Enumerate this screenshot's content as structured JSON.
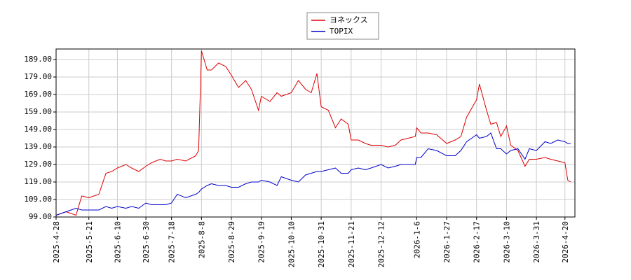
{
  "chart_data": {
    "type": "line",
    "x": [
      "2025-04-28",
      "2025-05-05",
      "2025-05-12",
      "2025-05-16",
      "2025-05-21",
      "2025-05-28",
      "2025-06-02",
      "2025-06-06",
      "2025-06-10",
      "2025-06-16",
      "2025-06-20",
      "2025-06-25",
      "2025-06-30",
      "2025-07-04",
      "2025-07-10",
      "2025-07-14",
      "2025-07-18",
      "2025-07-22",
      "2025-07-28",
      "2025-08-04",
      "2025-08-06",
      "2025-08-08",
      "2025-08-12",
      "2025-08-15",
      "2025-08-20",
      "2025-08-25",
      "2025-08-29",
      "2025-09-03",
      "2025-09-08",
      "2025-09-12",
      "2025-09-17",
      "2025-09-19",
      "2025-09-25",
      "2025-09-30",
      "2025-10-03",
      "2025-10-10",
      "2025-10-15",
      "2025-10-20",
      "2025-10-24",
      "2025-10-28",
      "2025-10-31",
      "2025-11-05",
      "2025-11-10",
      "2025-11-14",
      "2025-11-19",
      "2025-11-21",
      "2025-11-26",
      "2025-12-01",
      "2025-12-05",
      "2025-12-12",
      "2025-12-17",
      "2025-12-22",
      "2025-12-26",
      "2026-01-05",
      "2026-01-06",
      "2026-01-09",
      "2026-01-14",
      "2026-01-20",
      "2026-01-27",
      "2026-02-02",
      "2026-02-06",
      "2026-02-10",
      "2026-02-17",
      "2026-02-19",
      "2026-02-24",
      "2026-02-27",
      "2026-03-03",
      "2026-03-06",
      "2026-03-10",
      "2026-03-13",
      "2026-03-18",
      "2026-03-23",
      "2026-03-26",
      "2026-03-31",
      "2026-04-06",
      "2026-04-10",
      "2026-04-15",
      "2026-04-20",
      "2026-04-22",
      "2026-04-24"
    ],
    "series": [
      {
        "name": "ヨネックス",
        "color": "#dd0000",
        "values": [
          100,
          102,
          100,
          111,
          110,
          112,
          124,
          125,
          127,
          129,
          127,
          125,
          128,
          130,
          132,
          131,
          131,
          132,
          131,
          134,
          137,
          194,
          183,
          183,
          187,
          185,
          180,
          173,
          177,
          172,
          160,
          168,
          165,
          170,
          168,
          170,
          177,
          172,
          170,
          181,
          162,
          160,
          150,
          155,
          152,
          143,
          143,
          141,
          140,
          140,
          139,
          140,
          143,
          145,
          150,
          147,
          147,
          146,
          141,
          143,
          145,
          156,
          166,
          175,
          160,
          152,
          153,
          145,
          151,
          140,
          137,
          128,
          132,
          132,
          133,
          132,
          131,
          130,
          120,
          119
        ]
      },
      {
        "name": "TOPIX",
        "color": "#0000cc",
        "values": [
          100,
          102,
          104,
          103,
          103,
          103,
          105,
          104,
          105,
          104,
          105,
          104,
          107,
          106,
          106,
          106,
          107,
          112,
          110,
          112,
          113,
          115,
          117,
          118,
          117,
          117,
          116,
          116,
          118,
          119,
          119,
          120,
          119,
          117,
          122,
          120,
          119,
          123,
          124,
          125,
          125,
          126,
          127,
          124,
          124,
          126,
          127,
          126,
          127,
          129,
          127,
          128,
          129,
          129,
          133,
          133,
          138,
          137,
          134,
          134,
          137,
          142,
          146,
          144,
          145,
          147,
          138,
          138,
          135,
          137,
          138,
          132,
          138,
          137,
          142,
          141,
          143,
          142,
          141,
          141
        ]
      }
    ],
    "xlim": [
      "2025-04-28",
      "2026-04-27"
    ],
    "xticks": [
      {
        "value": "2025-04-28",
        "label": "2025-4-28"
      },
      {
        "value": "2025-05-21",
        "label": "2025-5-21"
      },
      {
        "value": "2025-06-10",
        "label": "2025-6-10"
      },
      {
        "value": "2025-06-30",
        "label": "2025-6-30"
      },
      {
        "value": "2025-07-18",
        "label": "2025-7-18"
      },
      {
        "value": "2025-08-08",
        "label": "2025-8-8"
      },
      {
        "value": "2025-08-29",
        "label": "2025-8-29"
      },
      {
        "value": "2025-09-19",
        "label": "2025-9-19"
      },
      {
        "value": "2025-10-10",
        "label": "2025-10-10"
      },
      {
        "value": "2025-10-31",
        "label": "2025-10-31"
      },
      {
        "value": "2025-11-21",
        "label": "2025-11-21"
      },
      {
        "value": "2025-12-12",
        "label": "2025-12-12"
      },
      {
        "value": "2026-01-06",
        "label": "2026-1-6"
      },
      {
        "value": "2026-01-27",
        "label": "2026-1-27"
      },
      {
        "value": "2026-02-17",
        "label": "2026-2-17"
      },
      {
        "value": "2026-03-10",
        "label": "2026-3-10"
      },
      {
        "value": "2026-03-31",
        "label": "2026-3-31"
      },
      {
        "value": "2026-04-20",
        "label": "2026-4-20"
      }
    ],
    "ylim": [
      99,
      195
    ],
    "yticks": [
      {
        "value": 99,
        "label": "99.00"
      },
      {
        "value": 109,
        "label": "109.00"
      },
      {
        "value": 119,
        "label": "119.00"
      },
      {
        "value": 129,
        "label": "129.00"
      },
      {
        "value": 139,
        "label": "139.00"
      },
      {
        "value": 149,
        "label": "149.00"
      },
      {
        "value": 159,
        "label": "159.00"
      },
      {
        "value": 169,
        "label": "169.00"
      },
      {
        "value": 179,
        "label": "179.00"
      },
      {
        "value": 189,
        "label": "189.00"
      }
    ],
    "grid": true
  }
}
